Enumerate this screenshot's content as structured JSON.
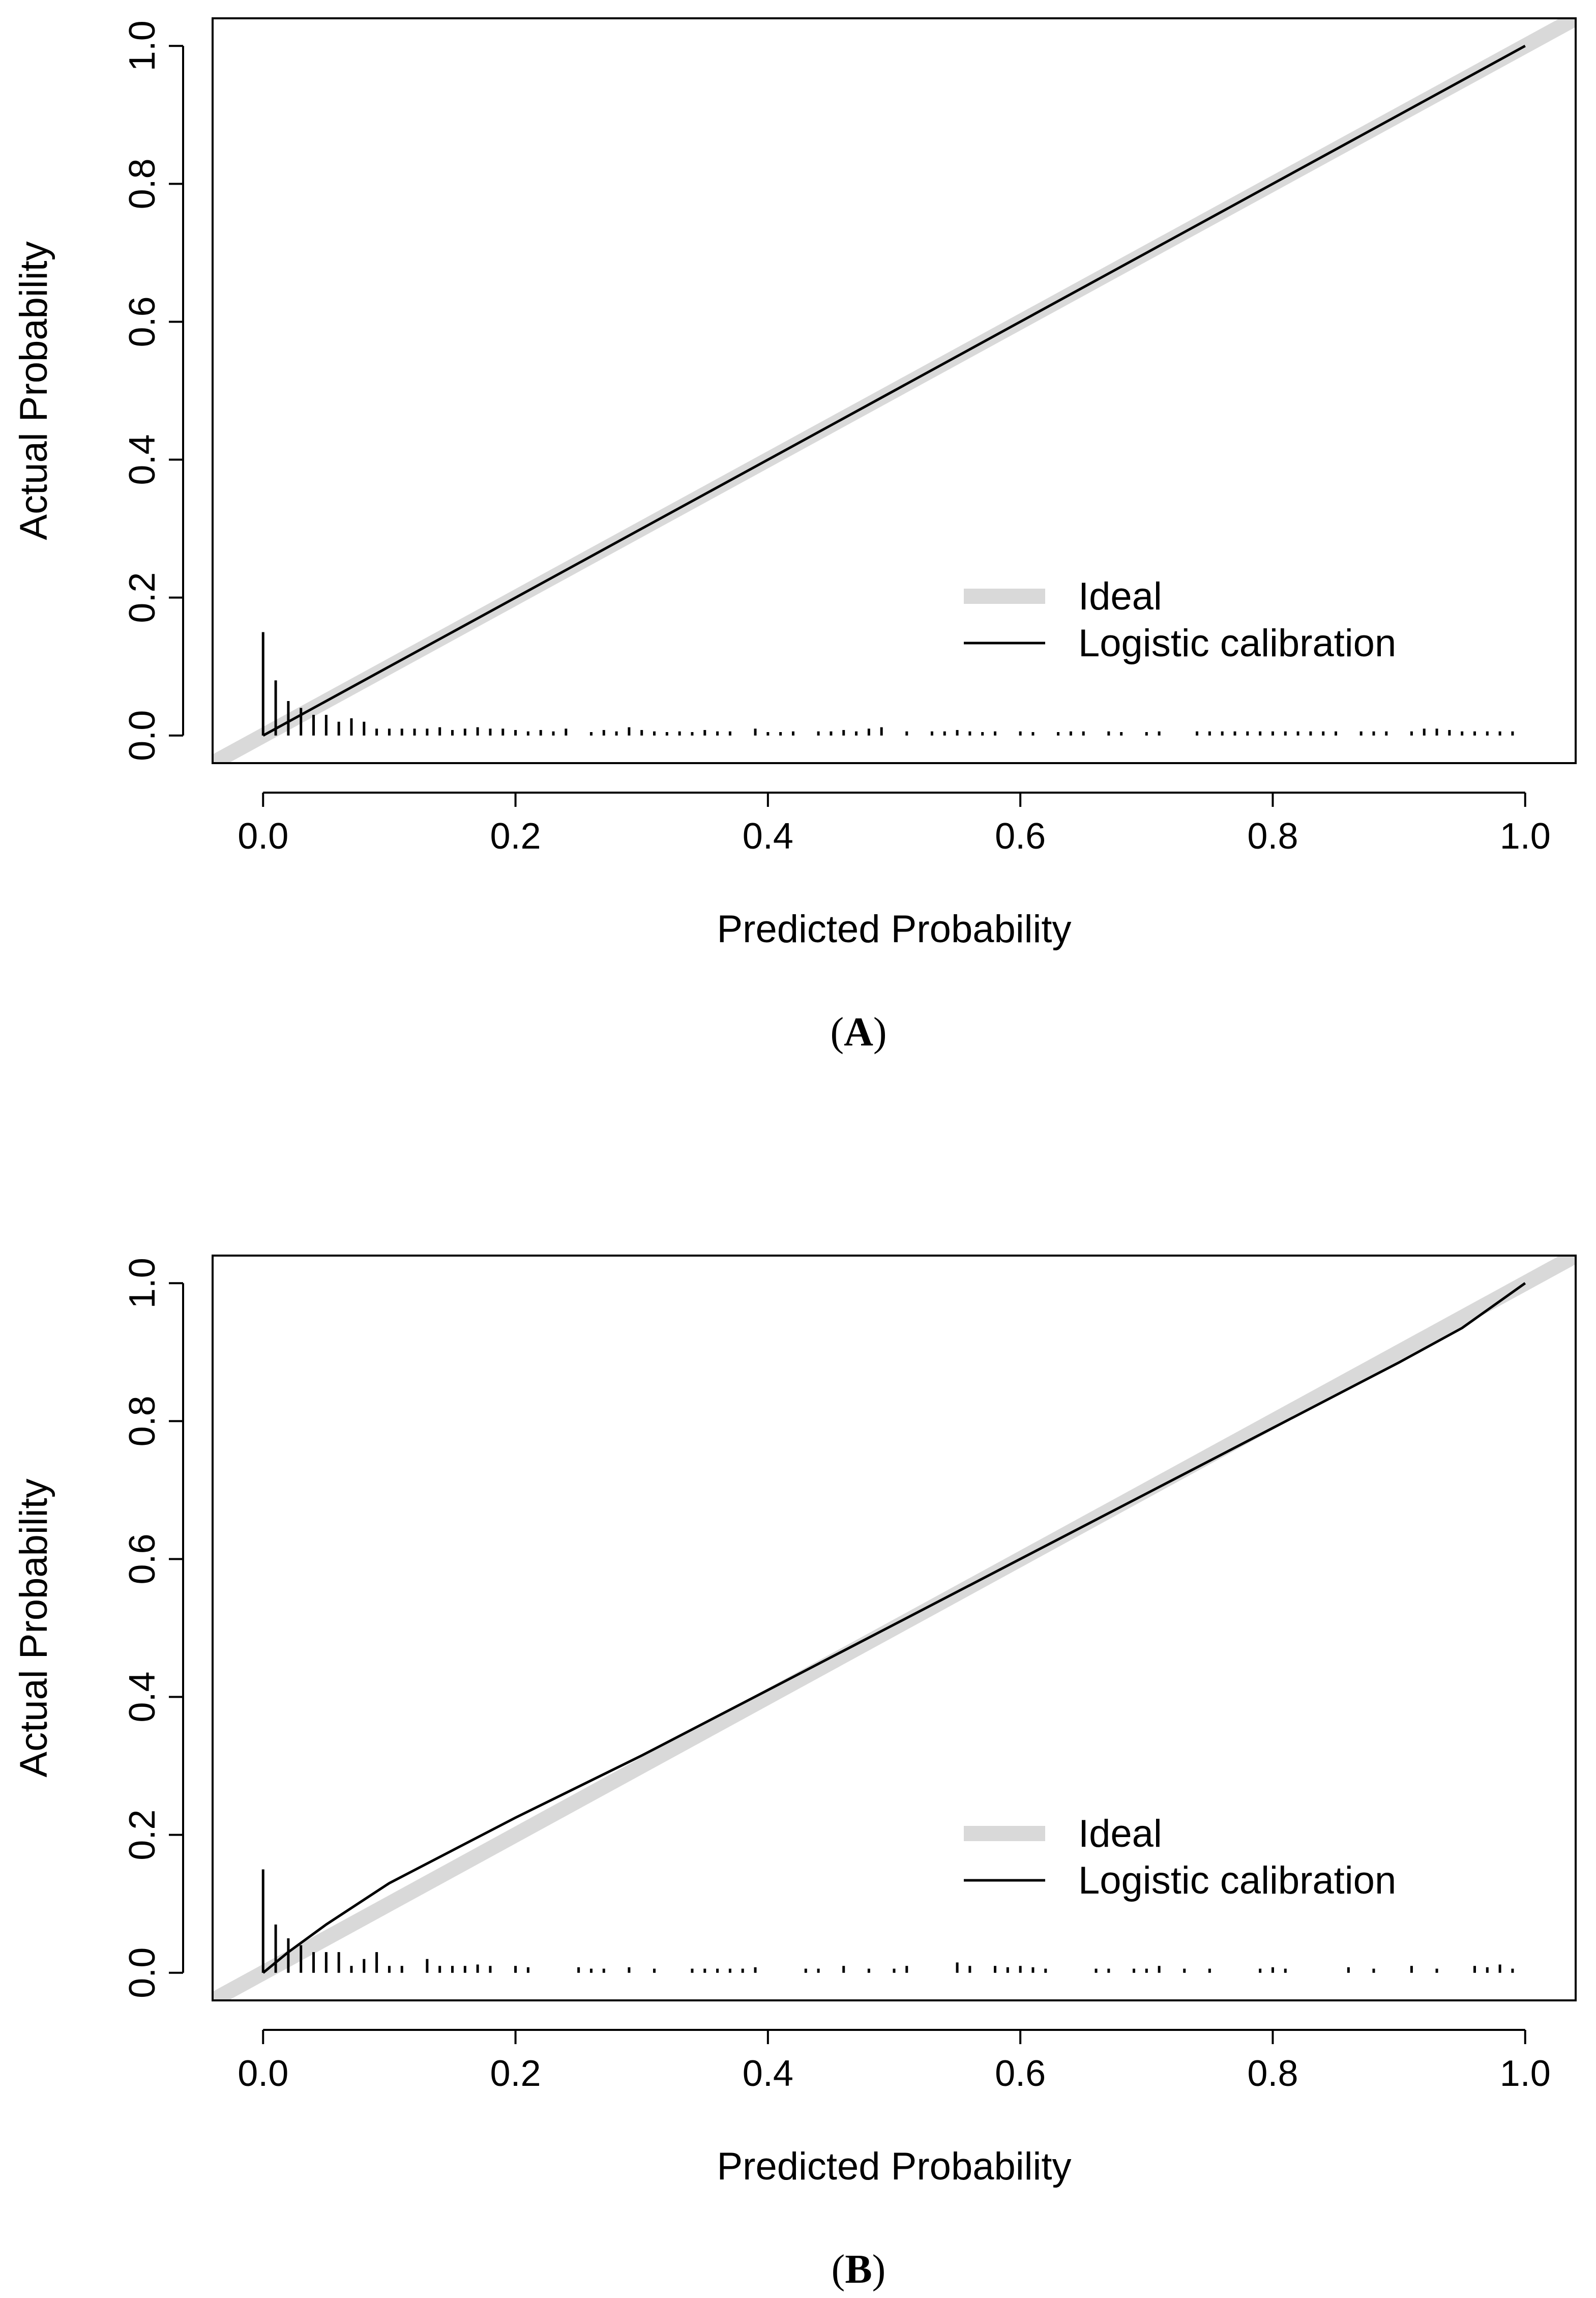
{
  "chart_data": [
    {
      "type": "line",
      "panel_label": "(A)",
      "xlabel": "Predicted Probability",
      "ylabel": "Actual Probability",
      "xlim": [
        -0.04,
        1.04
      ],
      "ylim": [
        -0.04,
        1.04
      ],
      "x_ticks": [
        "0.0",
        "0.2",
        "0.4",
        "0.6",
        "0.8",
        "1.0"
      ],
      "y_ticks": [
        "0.0",
        "0.2",
        "0.4",
        "0.6",
        "0.8",
        "1.0"
      ],
      "legend": {
        "position": "bottom-right",
        "entries": [
          "Ideal",
          "Logistic calibration"
        ]
      },
      "series": [
        {
          "name": "Ideal",
          "color": "#d9d9d9",
          "x": [
            -0.04,
            1.04
          ],
          "y": [
            -0.04,
            1.04
          ]
        },
        {
          "name": "Logistic calibration",
          "color": "#000000",
          "x": [
            0.0,
            0.1,
            0.2,
            0.3,
            0.4,
            0.5,
            0.6,
            0.7,
            0.8,
            0.9,
            1.0
          ],
          "y": [
            0.0,
            0.1,
            0.2,
            0.3,
            0.4,
            0.5,
            0.6,
            0.7,
            0.8,
            0.9,
            1.0
          ]
        }
      ],
      "rug": {
        "x": [
          0.0,
          0.01,
          0.02,
          0.03,
          0.04,
          0.05,
          0.06,
          0.07,
          0.08,
          0.09,
          0.1,
          0.11,
          0.12,
          0.13,
          0.14,
          0.15,
          0.16,
          0.17,
          0.18,
          0.19,
          0.2,
          0.21,
          0.22,
          0.23,
          0.24,
          0.26,
          0.27,
          0.28,
          0.29,
          0.3,
          0.31,
          0.32,
          0.33,
          0.34,
          0.35,
          0.36,
          0.37,
          0.39,
          0.4,
          0.41,
          0.42,
          0.44,
          0.45,
          0.46,
          0.47,
          0.48,
          0.49,
          0.51,
          0.53,
          0.54,
          0.55,
          0.56,
          0.57,
          0.58,
          0.6,
          0.61,
          0.63,
          0.64,
          0.65,
          0.67,
          0.68,
          0.7,
          0.71,
          0.74,
          0.75,
          0.76,
          0.77,
          0.78,
          0.79,
          0.8,
          0.81,
          0.82,
          0.83,
          0.84,
          0.85,
          0.87,
          0.88,
          0.89,
          0.91,
          0.92,
          0.93,
          0.94,
          0.95,
          0.96,
          0.97,
          0.98,
          0.99
        ],
        "h": [
          0.15,
          0.08,
          0.05,
          0.04,
          0.03,
          0.03,
          0.02,
          0.025,
          0.02,
          0.01,
          0.01,
          0.01,
          0.01,
          0.01,
          0.012,
          0.008,
          0.01,
          0.012,
          0.01,
          0.01,
          0.008,
          0.006,
          0.008,
          0.006,
          0.01,
          0.005,
          0.008,
          0.006,
          0.012,
          0.008,
          0.006,
          0.005,
          0.006,
          0.005,
          0.008,
          0.006,
          0.006,
          0.01,
          0.005,
          0.005,
          0.006,
          0.006,
          0.006,
          0.008,
          0.006,
          0.01,
          0.012,
          0.006,
          0.006,
          0.006,
          0.008,
          0.006,
          0.005,
          0.006,
          0.006,
          0.005,
          0.005,
          0.006,
          0.006,
          0.006,
          0.005,
          0.005,
          0.006,
          0.006,
          0.006,
          0.006,
          0.006,
          0.006,
          0.006,
          0.006,
          0.006,
          0.006,
          0.006,
          0.006,
          0.006,
          0.006,
          0.006,
          0.006,
          0.006,
          0.01,
          0.01,
          0.008,
          0.006,
          0.006,
          0.006,
          0.006,
          0.006
        ]
      }
    },
    {
      "type": "line",
      "panel_label": "(B)",
      "xlabel": "Predicted Probability",
      "ylabel": "Actual Probability",
      "xlim": [
        -0.04,
        1.04
      ],
      "ylim": [
        -0.04,
        1.04
      ],
      "x_ticks": [
        "0.0",
        "0.2",
        "0.4",
        "0.6",
        "0.8",
        "1.0"
      ],
      "y_ticks": [
        "0.0",
        "0.2",
        "0.4",
        "0.6",
        "0.8",
        "1.0"
      ],
      "legend": {
        "position": "bottom-right",
        "entries": [
          "Ideal",
          "Logistic calibration"
        ]
      },
      "series": [
        {
          "name": "Ideal",
          "color": "#d9d9d9",
          "x": [
            -0.04,
            1.04
          ],
          "y": [
            -0.04,
            1.04
          ]
        },
        {
          "name": "Logistic calibration",
          "color": "#000000",
          "x": [
            0.0,
            0.02,
            0.05,
            0.1,
            0.2,
            0.3,
            0.4,
            0.5,
            0.6,
            0.7,
            0.8,
            0.9,
            0.95,
            1.0
          ],
          "y": [
            0.0,
            0.03,
            0.07,
            0.13,
            0.225,
            0.315,
            0.41,
            0.505,
            0.6,
            0.695,
            0.79,
            0.885,
            0.935,
            1.0
          ]
        }
      ],
      "rug": {
        "x": [
          0.0,
          0.01,
          0.02,
          0.03,
          0.04,
          0.05,
          0.06,
          0.07,
          0.08,
          0.09,
          0.1,
          0.11,
          0.13,
          0.14,
          0.15,
          0.16,
          0.17,
          0.18,
          0.2,
          0.21,
          0.25,
          0.26,
          0.27,
          0.29,
          0.31,
          0.34,
          0.35,
          0.36,
          0.37,
          0.38,
          0.39,
          0.43,
          0.44,
          0.46,
          0.48,
          0.5,
          0.51,
          0.55,
          0.56,
          0.58,
          0.59,
          0.6,
          0.61,
          0.62,
          0.66,
          0.67,
          0.69,
          0.7,
          0.71,
          0.73,
          0.75,
          0.79,
          0.8,
          0.81,
          0.86,
          0.88,
          0.91,
          0.93,
          0.96,
          0.97,
          0.98,
          0.99
        ],
        "h": [
          0.15,
          0.07,
          0.05,
          0.04,
          0.03,
          0.03,
          0.03,
          0.01,
          0.02,
          0.03,
          0.01,
          0.01,
          0.02,
          0.01,
          0.01,
          0.01,
          0.012,
          0.01,
          0.01,
          0.008,
          0.008,
          0.006,
          0.006,
          0.008,
          0.006,
          0.006,
          0.006,
          0.006,
          0.006,
          0.006,
          0.008,
          0.006,
          0.006,
          0.01,
          0.006,
          0.006,
          0.01,
          0.015,
          0.01,
          0.01,
          0.008,
          0.01,
          0.008,
          0.006,
          0.006,
          0.006,
          0.006,
          0.006,
          0.01,
          0.006,
          0.006,
          0.006,
          0.008,
          0.006,
          0.008,
          0.006,
          0.01,
          0.006,
          0.01,
          0.008,
          0.012,
          0.006
        ]
      }
    }
  ]
}
